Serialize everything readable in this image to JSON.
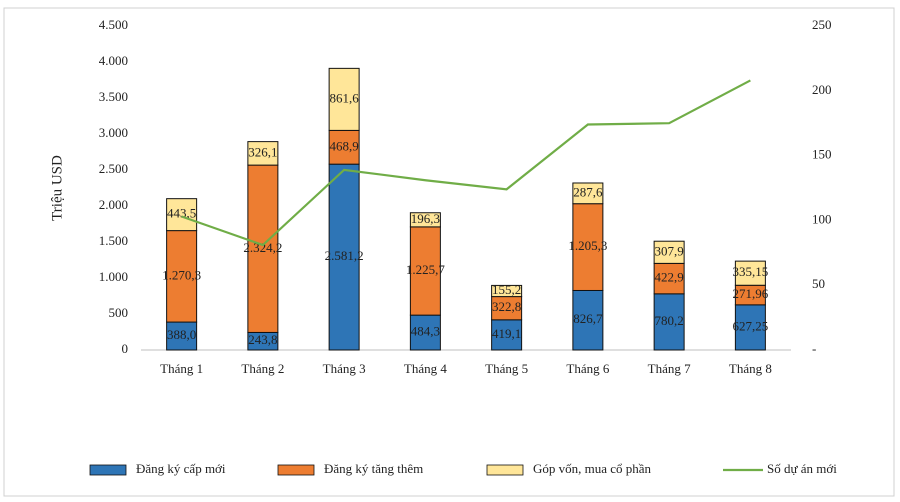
{
  "chart_data": {
    "type": "bar",
    "stacked": true,
    "y_label": "Triệu USD",
    "categories": [
      "Tháng 1",
      "Tháng 2",
      "Tháng 3",
      "Tháng 4",
      "Tháng 5",
      "Tháng 6",
      "Tháng 7",
      "Tháng 8"
    ],
    "series": [
      {
        "name": "Đăng ký cấp mới",
        "color": "#2e75b6",
        "values": [
          388.0,
          243.8,
          2581.2,
          484.3,
          419.1,
          826.7,
          780.2,
          627.25
        ],
        "value_labels": [
          "388,0",
          "243,8",
          "2.581,2",
          "484,3",
          "419,1",
          "826,7",
          "780,2",
          "627,25"
        ]
      },
      {
        "name": "Đăng ký tăng thêm",
        "color": "#ed7d31",
        "values": [
          1270.3,
          2324.2,
          468.9,
          1225.7,
          322.8,
          1205.3,
          422.9,
          271.96
        ],
        "value_labels": [
          "1.270,3",
          "2.324,2",
          "468,9",
          "1.225,7",
          "322,8",
          "1.205,3",
          "422,9",
          "271,96"
        ]
      },
      {
        "name": "Góp vốn, mua cổ phần",
        "color": "#ffe699",
        "values": [
          443.5,
          326.1,
          861.6,
          196.3,
          155.2,
          287.6,
          307.9,
          335.15
        ],
        "value_labels": [
          "443,5",
          "326,1",
          "861,6",
          "196,3",
          "155,2",
          "287,6",
          "307,9",
          "335,15"
        ]
      },
      {
        "name": "Số dự án mới",
        "type": "line",
        "axis": "y2",
        "color": "#70ad47",
        "values": [
          103,
          81,
          139,
          131,
          124,
          174,
          175,
          208
        ]
      }
    ],
    "ylim": [
      0,
      4500
    ],
    "yticks": [
      0,
      500,
      {
        "value": 1000,
        "label": "1.000"
      },
      {
        "value": 1500,
        "label": "1.500"
      },
      {
        "value": 2000,
        "label": "2.000"
      },
      {
        "value": 2500,
        "label": "2.500"
      },
      {
        "value": 3000,
        "label": "3.000"
      },
      {
        "value": 3500,
        "label": "3.500"
      },
      {
        "value": 4000,
        "label": "4.000"
      },
      {
        "value": 4500,
        "label": "4.500"
      }
    ],
    "y2lim": [
      0,
      250
    ],
    "y2ticks": [
      {
        "value": 0,
        "label": "-"
      },
      50,
      100,
      150,
      200,
      250
    ],
    "legend": "bottom"
  }
}
